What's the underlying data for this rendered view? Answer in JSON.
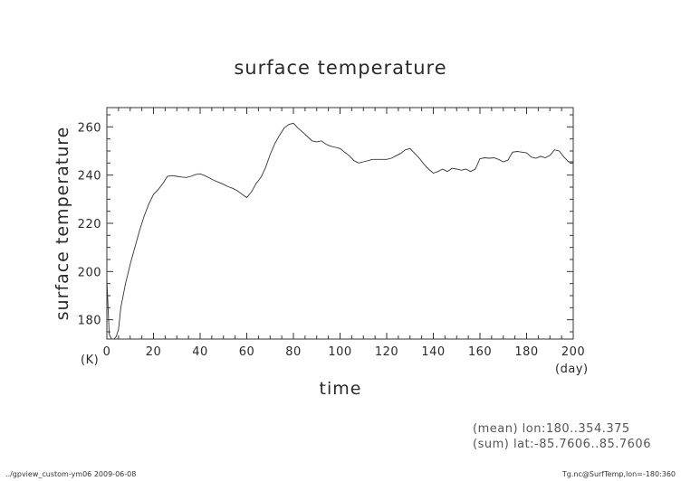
{
  "chart_data": {
    "type": "line",
    "title": "surface temperature",
    "xlabel": "time",
    "ylabel": "surface temperature",
    "x_unit": "(day)",
    "y_unit": "(K)",
    "xlim": [
      0,
      200
    ],
    "ylim": [
      172,
      268
    ],
    "xticks": [
      "0",
      "20",
      "40",
      "60",
      "80",
      "100",
      "120",
      "140",
      "160",
      "180",
      "200"
    ],
    "yticks": [
      "180",
      "200",
      "220",
      "240",
      "260"
    ],
    "x": [
      0,
      1,
      2,
      3,
      4,
      5,
      6,
      7,
      8,
      10,
      12,
      14,
      16,
      18,
      20,
      22,
      24,
      26,
      28,
      30,
      32,
      34,
      36,
      38,
      40,
      42,
      44,
      46,
      48,
      50,
      52,
      54,
      56,
      58,
      60,
      62,
      64,
      66,
      68,
      70,
      72,
      74,
      76,
      78,
      80,
      82,
      84,
      86,
      88,
      90,
      92,
      94,
      96,
      98,
      100,
      102,
      104,
      106,
      108,
      110,
      112,
      114,
      116,
      118,
      120,
      122,
      124,
      126,
      128,
      130,
      132,
      134,
      136,
      138,
      140,
      142,
      144,
      146,
      148,
      150,
      152,
      154,
      156,
      158,
      160,
      162,
      164,
      166,
      168,
      170,
      172,
      174,
      176,
      178,
      180,
      182,
      184,
      186,
      188,
      190,
      192,
      194,
      196,
      198,
      200
    ],
    "values": [
      197,
      174,
      172,
      172,
      173,
      176,
      185,
      190,
      195,
      203,
      210,
      217,
      223,
      228,
      232,
      234,
      236.5,
      239.5,
      239.8,
      239.5,
      239.2,
      239,
      239.5,
      240.2,
      240.5,
      239.8,
      238.8,
      237.8,
      237,
      236.2,
      235.2,
      234.5,
      233.5,
      232,
      230.7,
      233,
      236.5,
      239,
      243,
      248.5,
      253,
      256.5,
      259.5,
      261,
      261.5,
      259.5,
      257.8,
      256,
      254.2,
      253.8,
      254.2,
      252.8,
      252,
      251.5,
      251,
      249.5,
      248,
      246,
      245,
      245.5,
      246,
      246.5,
      246.5,
      246.5,
      246.5,
      247,
      248,
      249,
      250.5,
      251,
      249,
      247,
      244.5,
      242.5,
      240.8,
      241.5,
      242.5,
      241.5,
      242.8,
      242.5,
      242,
      242.5,
      241.5,
      242.5,
      246.8,
      247.2,
      247,
      247.2,
      246.5,
      245.5,
      246.2,
      249.5,
      249.8,
      249.5,
      249.2,
      247.5,
      247,
      247.8,
      247.2,
      248.2,
      250.5,
      250,
      247.5,
      245.5,
      245.5
    ]
  },
  "notes": {
    "mean": "(mean) lon:180..354.375",
    "sum": "(sum) lat:-85.7606..85.7606"
  },
  "footer": {
    "left": "../gpview_custom-ym06  2009-06-08",
    "right": "Tg.nc@SurfTemp,lon=-180:360"
  }
}
